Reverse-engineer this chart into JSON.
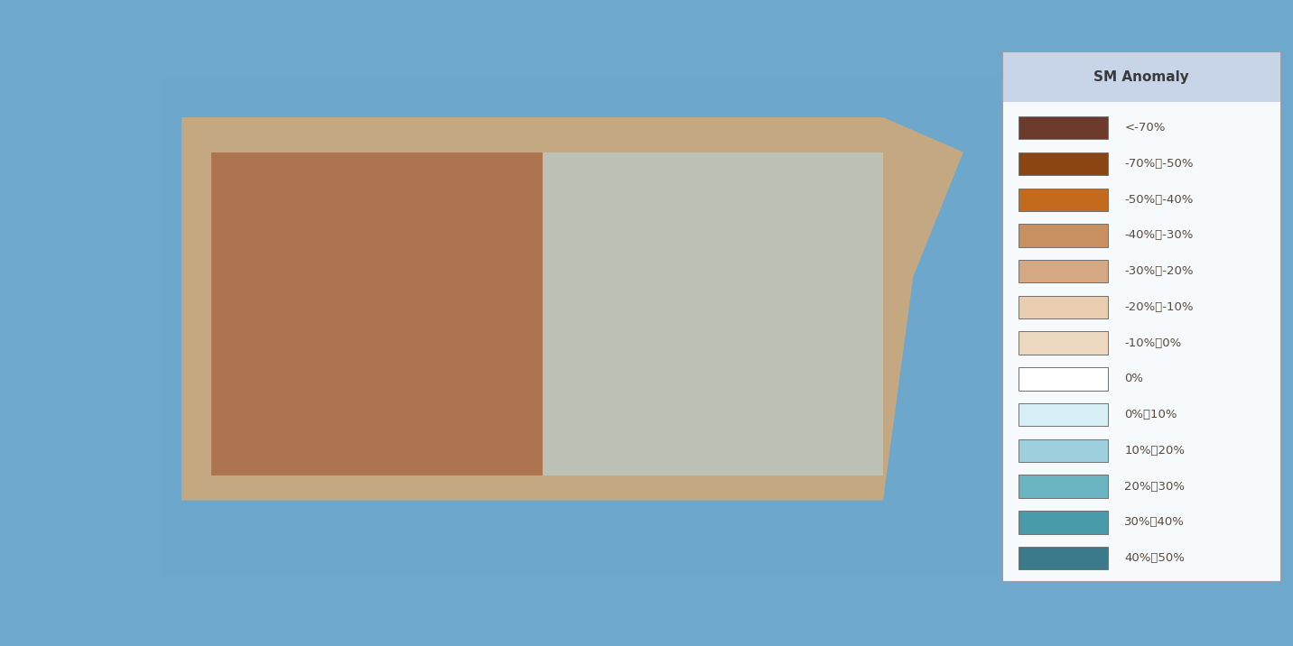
{
  "title": "SM Anomaly",
  "legend_items": [
    {
      "label": "<-70%",
      "color": "#6B3A2A"
    },
    {
      "label": "-70%～-50%",
      "color": "#8B4513"
    },
    {
      "label": "-50%～-40%",
      "color": "#C46A1F"
    },
    {
      "label": "-40%～-30%",
      "color": "#C89060"
    },
    {
      "label": "-30%～-20%",
      "color": "#D4A882"
    },
    {
      "label": "-20%～-10%",
      "color": "#E8CDB0"
    },
    {
      "label": "-10%～0%",
      "color": "#EDD8C0"
    },
    {
      "label": "0%",
      "color": "#FFFFFF"
    },
    {
      "label": "0%～10%",
      "color": "#D6EEF5"
    },
    {
      "label": "10%～20%",
      "color": "#9DCFDC"
    },
    {
      "label": "20%～30%",
      "color": "#6BB5C3"
    },
    {
      "label": "30%～40%",
      "color": "#4A9BAA"
    },
    {
      "label": "40%～50%",
      "color": "#3A7A8A"
    }
  ],
  "background_color": "#6EA8CC",
  "legend_bg_color": "#FFFFFF",
  "legend_header_bg": "#C8D4E8",
  "legend_border_color": "#A0A0A0",
  "text_color": "#3A3A3A",
  "label_text_color": "#5A4A3A",
  "fig_width": 14.32,
  "fig_height": 7.16
}
